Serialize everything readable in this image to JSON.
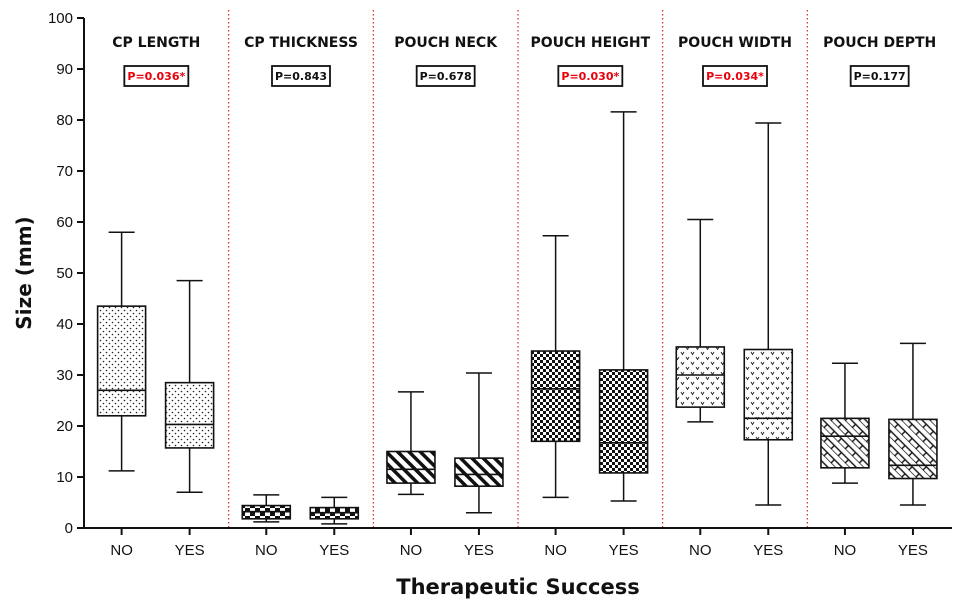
{
  "chart_data": {
    "type": "box",
    "ylabel": "Size (mm)",
    "xlabel": "Therapeutic Success",
    "ylim": [
      0,
      100
    ],
    "yticks": [
      0,
      10,
      20,
      30,
      40,
      50,
      60,
      70,
      80,
      90,
      100
    ],
    "categories": [
      "NO",
      "YES"
    ],
    "significant_color": "#e8000b",
    "divider_color": "#d62728",
    "panels": [
      {
        "title": "CP LENGTH",
        "p_value": "P=0.036*",
        "significant": true,
        "pattern": "dots",
        "boxes": [
          {
            "group": "NO",
            "min": 11.2,
            "q1": 22,
            "median": 27,
            "q3": 43.5,
            "max": 58
          },
          {
            "group": "YES",
            "min": 7,
            "q1": 15.7,
            "median": 20.3,
            "q3": 28.5,
            "max": 48.5
          }
        ]
      },
      {
        "title": "CP THICKNESS",
        "p_value": "P=0.843",
        "significant": false,
        "pattern": "bricks",
        "boxes": [
          {
            "group": "NO",
            "min": 1.2,
            "q1": 1.8,
            "median": 3.2,
            "q3": 4.4,
            "max": 6.5
          },
          {
            "group": "YES",
            "min": 0.8,
            "q1": 1.8,
            "median": 3.0,
            "q3": 4.0,
            "max": 6.0
          }
        ]
      },
      {
        "title": "POUCH NECK",
        "p_value": "P=0.678",
        "significant": false,
        "pattern": "stripes",
        "boxes": [
          {
            "group": "NO",
            "min": 6.6,
            "q1": 8.8,
            "median": 11.5,
            "q3": 15,
            "max": 26.7
          },
          {
            "group": "YES",
            "min": 3,
            "q1": 8.2,
            "median": 10.5,
            "q3": 13.7,
            "max": 30.4
          }
        ]
      },
      {
        "title": "POUCH HEIGHT",
        "p_value": "P=0.030*",
        "significant": true,
        "pattern": "checker",
        "boxes": [
          {
            "group": "NO",
            "min": 6,
            "q1": 17,
            "median": 27.3,
            "q3": 34.7,
            "max": 57.3
          },
          {
            "group": "YES",
            "min": 5.3,
            "q1": 10.8,
            "median": 16.7,
            "q3": 31,
            "max": 81.6
          }
        ]
      },
      {
        "title": "POUCH WIDTH",
        "p_value": "P=0.034*",
        "significant": true,
        "pattern": "v-marks",
        "boxes": [
          {
            "group": "NO",
            "min": 20.8,
            "q1": 23.7,
            "median": 30,
            "q3": 35.5,
            "max": 60.5
          },
          {
            "group": "YES",
            "min": 4.5,
            "q1": 17.3,
            "median": 21.5,
            "q3": 35,
            "max": 79.4
          }
        ]
      },
      {
        "title": "POUCH DEPTH",
        "p_value": "P=0.177",
        "significant": false,
        "pattern": "weave",
        "boxes": [
          {
            "group": "NO",
            "min": 8.8,
            "q1": 11.8,
            "median": 18,
            "q3": 21.5,
            "max": 32.3
          },
          {
            "group": "YES",
            "min": 4.5,
            "q1": 9.7,
            "median": 12.3,
            "q3": 21.3,
            "max": 36.2
          }
        ]
      }
    ]
  }
}
